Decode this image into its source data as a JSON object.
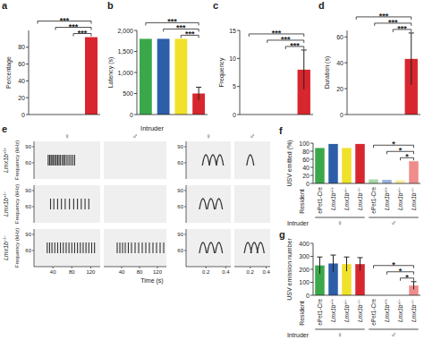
{
  "chart_data": [
    {
      "panel": "a",
      "type": "bar",
      "ylabel": "Percentage",
      "categories": [
        null,
        null,
        null,
        null
      ],
      "values": [
        0,
        0,
        0,
        92
      ],
      "colors": [
        "#3aa84a",
        "#2d5ea8",
        "#f0e12a",
        "#d8262e"
      ],
      "ylim": [
        0,
        100
      ],
      "yticks": [
        0,
        20,
        40,
        60,
        80
      ],
      "tick_labels": "y",
      "annotations": [
        {
          "label": "***",
          "from": 0,
          "to": 3
        },
        {
          "label": "***",
          "from": 1,
          "to": 3
        },
        {
          "label": "***",
          "from": 2,
          "to": 3
        }
      ]
    },
    {
      "panel": "b",
      "type": "bar",
      "ylabel": "Latency (s)",
      "categories": [
        null,
        null,
        null,
        null
      ],
      "values": [
        1800,
        1800,
        1800,
        500
      ],
      "errors": [
        null,
        null,
        null,
        150
      ],
      "colors": [
        "#3aa84a",
        "#2d5ea8",
        "#f0e12a",
        "#d8262e"
      ],
      "ylim": [
        0,
        2000
      ],
      "yticks": [
        0,
        500,
        {
          "value": 1000,
          "label": "1,000"
        },
        {
          "value": 1500,
          "label": "1,500"
        },
        {
          "value": 2000,
          "label": "2,000"
        }
      ],
      "tick_labels": "y",
      "annotations": [
        {
          "label": "***",
          "from": 0,
          "to": 3
        },
        {
          "label": "***",
          "from": 1,
          "to": 3
        },
        {
          "label": "***",
          "from": 2,
          "to": 3
        }
      ]
    },
    {
      "panel": "c",
      "type": "bar",
      "ylabel": "Frequency",
      "categories": [
        null,
        null,
        null,
        null
      ],
      "values": [
        0,
        0,
        0,
        8
      ],
      "errors": [
        null,
        null,
        null,
        3.5
      ],
      "colors": [
        "#3aa84a",
        "#2d5ea8",
        "#f0e12a",
        "#d8262e"
      ],
      "ylim": [
        0,
        15
      ],
      "yticks": [
        0,
        5,
        10,
        15
      ],
      "tick_labels": "y",
      "annotations": [
        {
          "label": "***",
          "from": 0,
          "to": 3
        },
        {
          "label": "***",
          "from": 1,
          "to": 3
        },
        {
          "label": "***",
          "from": 2,
          "to": 3
        }
      ]
    },
    {
      "panel": "d",
      "type": "bar",
      "ylabel": "Duration (s)",
      "categories": [
        null,
        null,
        null,
        null
      ],
      "values": [
        0,
        0,
        0,
        43
      ],
      "errors": [
        null,
        null,
        null,
        20
      ],
      "colors": [
        "#3aa84a",
        "#2d5ea8",
        "#f0e12a",
        "#d8262e"
      ],
      "ylim": [
        0,
        65
      ],
      "yticks": [
        0,
        20,
        40,
        60
      ],
      "tick_labels": "y",
      "annotations": [
        {
          "label": "***",
          "from": 0,
          "to": 3
        },
        {
          "label": "***",
          "from": 1,
          "to": 3
        },
        {
          "label": "***",
          "from": 2,
          "to": 3
        }
      ]
    },
    {
      "panel": "e",
      "type": "spectrogram",
      "title": "Intruder",
      "ylabel": "Frequency (kHz)",
      "xlabel": "Time (s)",
      "ylim": [
        30,
        100
      ],
      "yticks": [
        60,
        90
      ],
      "rows": [
        "Lmx1b+/+",
        "Lmx1b+/−",
        "Lmx1b−/−"
      ],
      "columns": [
        {
          "label": "♀",
          "xlim": [
            0,
            140
          ],
          "xticks": [
            40,
            80,
            120
          ]
        },
        {
          "label": "♂",
          "xlim": [
            0,
            140
          ],
          "xticks": [
            40,
            80,
            120
          ]
        },
        {
          "label": "♀",
          "xlim": [
            0,
            0.45
          ],
          "xticks": [
            0.2,
            0.4
          ]
        },
        {
          "label": "♂",
          "xlim": [
            0,
            0.45
          ],
          "xticks": [
            0.2,
            0.4
          ]
        }
      ],
      "call_band": [
        55,
        75
      ],
      "calls": [
        [
          [
            30,
            33,
            36,
            38,
            41,
            44,
            47,
            50,
            53,
            56,
            60,
            63,
            66,
            70,
            74,
            78,
            82,
            86
          ],
          [],
          [
            0.2,
            0.27,
            0.34
          ],
          [
            0.2
          ]
        ],
        [
          [
            35,
            42,
            50,
            58,
            66,
            75,
            84,
            92,
            100,
            108,
            116
          ],
          [],
          [
            0.17,
            0.25,
            0.33
          ],
          []
        ],
        [
          [
            28,
            33,
            38,
            44,
            50,
            56,
            62,
            68,
            74,
            80,
            86,
            92,
            98,
            104,
            110,
            116,
            122,
            128
          ],
          [
            30,
            36,
            42,
            48,
            55,
            62,
            70,
            78,
            86,
            94,
            102,
            110,
            118,
            126,
            134
          ],
          [
            0.17,
            0.25,
            0.33
          ],
          [
            0.17,
            0.25,
            0.33
          ]
        ]
      ]
    },
    {
      "panel": "f",
      "type": "bar",
      "ylabel": "USV emitted (%)",
      "categories": [
        "ePet1-Cre",
        "Lmx1b+/+",
        "Lmx1b+/−",
        "Lmx1b−/−",
        "ePet1-Cre",
        "Lmx1b+/+",
        "Lmx1b+/−",
        "Lmx1b−/−"
      ],
      "values": [
        88,
        98,
        88,
        98,
        10,
        9,
        8,
        55
      ],
      "colors": [
        "#3aa84a",
        "#2d5ea8",
        "#f0e12a",
        "#d8262e",
        "#a6d8a6",
        "#9db3de",
        "#f6ef9e",
        "#f08c8c"
      ],
      "ylim": [
        0,
        100
      ],
      "yticks": [
        0,
        20,
        40,
        60,
        80,
        100
      ],
      "category_title": "Resident",
      "group_title": "Intruder",
      "groups": [
        {
          "label": "♀",
          "from": 0,
          "to": 3
        },
        {
          "label": "♂",
          "from": 4,
          "to": 7
        }
      ],
      "annotations": [
        {
          "label": "*",
          "from": 4,
          "to": 7
        },
        {
          "label": "*",
          "from": 5,
          "to": 7
        },
        {
          "label": "*",
          "from": 6,
          "to": 7
        }
      ]
    },
    {
      "panel": "g",
      "type": "bar",
      "ylabel": "USV emission number",
      "categories": [
        "ePet1-Cre",
        "Lmx1b+/+",
        "Lmx1b+/−",
        "Lmx1b−/−",
        "ePet1-Cre",
        "Lmx1b+/+",
        "Lmx1b+/−",
        "Lmx1b−/−"
      ],
      "values": [
        230,
        245,
        240,
        240,
        0,
        0,
        0,
        75
      ],
      "errors": [
        65,
        65,
        55,
        50,
        null,
        null,
        null,
        30
      ],
      "colors": [
        "#3aa84a",
        "#2d5ea8",
        "#f0e12a",
        "#d8262e",
        "#a6d8a6",
        "#9db3de",
        "#f6ef9e",
        "#f08c8c"
      ],
      "ylim": [
        0,
        400
      ],
      "yticks": [
        0,
        100,
        200,
        300,
        400
      ],
      "category_title": "Resident",
      "group_title": "Intruder",
      "groups": [
        {
          "label": "♀",
          "from": 0,
          "to": 3
        },
        {
          "label": "♂",
          "from": 4,
          "to": 7
        }
      ],
      "annotations": [
        {
          "label": "*",
          "from": 4,
          "to": 7
        },
        {
          "label": "*",
          "from": 5,
          "to": 7
        },
        {
          "label": "*",
          "from": 6,
          "to": 7
        }
      ]
    }
  ]
}
